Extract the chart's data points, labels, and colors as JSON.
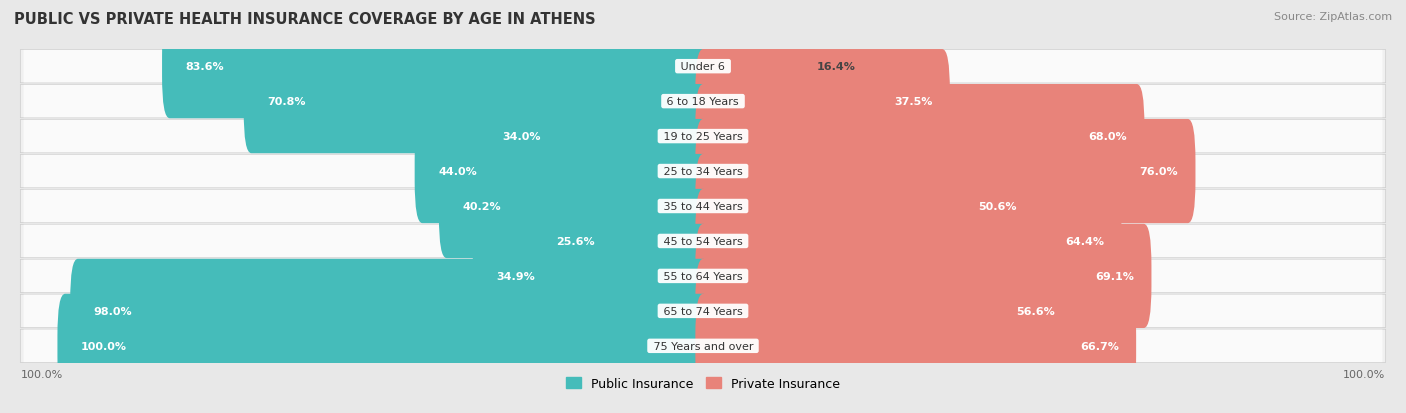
{
  "title": "PUBLIC VS PRIVATE HEALTH INSURANCE COVERAGE BY AGE IN ATHENS",
  "source": "Source: ZipAtlas.com",
  "categories": [
    "Under 6",
    "6 to 18 Years",
    "19 to 25 Years",
    "25 to 34 Years",
    "35 to 44 Years",
    "45 to 54 Years",
    "55 to 64 Years",
    "65 to 74 Years",
    "75 Years and over"
  ],
  "public_values": [
    83.6,
    70.8,
    34.0,
    44.0,
    40.2,
    25.6,
    34.9,
    98.0,
    100.0
  ],
  "private_values": [
    16.4,
    37.5,
    68.0,
    76.0,
    50.6,
    64.4,
    69.1,
    56.6,
    66.7
  ],
  "public_color": "#45BCBA",
  "private_color": "#E8837A",
  "row_bg_color": "#ebebeb",
  "row_pill_color": "#f8f8f8",
  "axis_label_left": "100.0%",
  "axis_label_right": "100.0%",
  "legend_public": "Public Insurance",
  "legend_private": "Private Insurance",
  "title_fontsize": 10.5,
  "source_fontsize": 8,
  "bar_label_fontsize": 8,
  "category_fontsize": 8,
  "max_value": 100.0,
  "fig_bg": "#e8e8e8"
}
